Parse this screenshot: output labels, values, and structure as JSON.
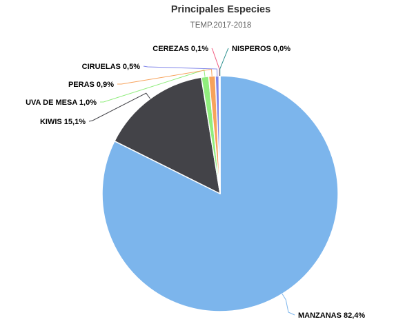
{
  "chart_data": {
    "type": "pie",
    "title": "Principales Especies",
    "subtitle": "TEMP.2017-2018",
    "slices": [
      {
        "name": "MANZANAS",
        "value": 82.4,
        "label": "MANZANAS 82,4%",
        "color": "#7cb5ec"
      },
      {
        "name": "KIWIS",
        "value": 15.1,
        "label": "KIWIS 15,1%",
        "color": "#434348"
      },
      {
        "name": "UVA DE MESA",
        "value": 1.0,
        "label": "UVA DE MESA 1,0%",
        "color": "#90ed7d"
      },
      {
        "name": "PERAS",
        "value": 0.9,
        "label": "PERAS 0,9%",
        "color": "#f7a35c"
      },
      {
        "name": "CIRUELAS",
        "value": 0.5,
        "label": "CIRUELAS 0,5%",
        "color": "#8085e9"
      },
      {
        "name": "CEREZAS",
        "value": 0.1,
        "label": "CEREZAS 0,1%",
        "color": "#f15c80"
      },
      {
        "name": "NISPEROS",
        "value": 0.0,
        "label": "NISPEROS 0,0%",
        "color": "#2b908f"
      }
    ]
  }
}
